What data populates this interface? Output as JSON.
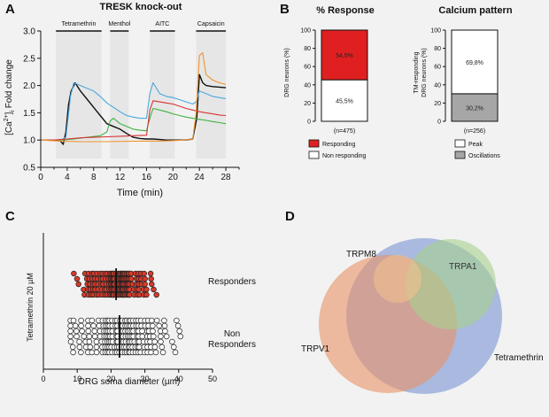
{
  "panels": {
    "A": {
      "letter": "A",
      "title": "TRESK knock-out"
    },
    "B": {
      "letter": "B"
    },
    "C": {
      "letter": "C"
    },
    "D": {
      "letter": "D"
    }
  },
  "chart_data": [
    {
      "id": "A",
      "type": "line",
      "title": "TRESK knock-out",
      "xlabel": "Time (min)",
      "ylabel": "[Ca2+]i Fold change",
      "ylabel_parts": {
        "pre": "[Ca",
        "sup": "2+",
        "mid": "]",
        "sub": "i",
        "post": " Fold change"
      },
      "xlim": [
        0,
        30
      ],
      "ylim": [
        0.5,
        3.0
      ],
      "xticks": [
        0,
        2,
        4,
        6,
        8,
        10,
        12,
        14,
        16,
        18,
        20,
        22,
        24,
        26,
        28,
        30
      ],
      "yticks": [
        0.5,
        1.0,
        1.5,
        2.0,
        2.5,
        3.0
      ],
      "ytick_labels": [
        "0.5",
        "1.0",
        "1.5",
        "2.0",
        "2.5",
        "3.0"
      ],
      "stimuli": [
        {
          "label": "Tetramethrin",
          "start": 2.3,
          "end": 9.2
        },
        {
          "label": "Menthol",
          "start": 10.5,
          "end": 13.3
        },
        {
          "label": "AITC",
          "start": 16.5,
          "end": 20.3
        },
        {
          "label": "Capsaicin",
          "start": 23.5,
          "end": 28.0
        }
      ],
      "series": [
        {
          "name": "black",
          "color": "#111111",
          "x": [
            0,
            2,
            3,
            3.4,
            3.8,
            4.2,
            4.6,
            5.2,
            6,
            7,
            8,
            9,
            10,
            11,
            12,
            13,
            14,
            15,
            16,
            17,
            18,
            19,
            20,
            21,
            22,
            23,
            23.6,
            24,
            24.5,
            25,
            26,
            27,
            28
          ],
          "y": [
            1.0,
            1.0,
            0.98,
            0.92,
            1.15,
            1.65,
            1.9,
            2.05,
            1.9,
            1.75,
            1.6,
            1.45,
            1.3,
            1.25,
            1.2,
            1.12,
            1.05,
            1.03,
            1.02,
            1.02,
            1.01,
            1.0,
            1.0,
            1.0,
            1.0,
            1.02,
            1.4,
            2.2,
            2.05,
            2.0,
            1.98,
            1.97,
            1.96
          ]
        },
        {
          "name": "blue",
          "color": "#4aa8de",
          "x": [
            0,
            3,
            3.8,
            4.5,
            5,
            6,
            7,
            8,
            9,
            10,
            11,
            12,
            13,
            14,
            15,
            16,
            16.5,
            17,
            17.5,
            18,
            19,
            20,
            21,
            22,
            23,
            23.5,
            24,
            25,
            26,
            27,
            28
          ],
          "y": [
            1.0,
            1.0,
            1.05,
            1.8,
            2.05,
            2.0,
            1.95,
            1.9,
            1.8,
            1.68,
            1.6,
            1.52,
            1.45,
            1.42,
            1.4,
            1.4,
            1.85,
            2.05,
            1.95,
            1.85,
            1.8,
            1.78,
            1.74,
            1.7,
            1.66,
            1.7,
            1.9,
            1.85,
            1.8,
            1.78,
            1.76
          ]
        },
        {
          "name": "green",
          "color": "#3fb33f",
          "x": [
            0,
            3,
            5,
            7,
            9,
            10,
            10.5,
            11,
            11.5,
            12,
            13,
            14,
            15,
            16,
            16.5,
            17,
            18,
            19,
            20,
            21,
            22,
            23,
            24,
            25,
            26,
            27,
            28
          ],
          "y": [
            1.0,
            1.0,
            1.02,
            1.05,
            1.08,
            1.15,
            1.35,
            1.4,
            1.35,
            1.3,
            1.25,
            1.2,
            1.18,
            1.17,
            1.4,
            1.58,
            1.55,
            1.52,
            1.48,
            1.45,
            1.42,
            1.4,
            1.38,
            1.36,
            1.34,
            1.32,
            1.3
          ]
        },
        {
          "name": "red",
          "color": "#d93232",
          "x": [
            0,
            2,
            4,
            6,
            8,
            10,
            12,
            14,
            16,
            16.5,
            17,
            18,
            19,
            20,
            21,
            22,
            23,
            24,
            25,
            26,
            27,
            28
          ],
          "y": [
            1.0,
            1.0,
            1.02,
            1.04,
            1.05,
            1.06,
            1.07,
            1.08,
            1.09,
            1.55,
            1.72,
            1.7,
            1.68,
            1.66,
            1.62,
            1.58,
            1.55,
            1.52,
            1.5,
            1.48,
            1.46,
            1.45
          ]
        },
        {
          "name": "orange",
          "color": "#f0952e",
          "x": [
            0,
            3,
            6,
            10,
            14,
            18,
            20,
            22,
            23,
            23.5,
            24,
            24.5,
            25,
            26,
            27,
            28
          ],
          "y": [
            1.0,
            0.98,
            0.97,
            0.97,
            0.98,
            0.98,
            0.99,
            1.0,
            1.02,
            1.5,
            2.55,
            2.6,
            2.2,
            2.1,
            2.05,
            2.02
          ]
        }
      ]
    },
    {
      "id": "B1",
      "type": "bar",
      "title": "% Response",
      "ylabel": "DRG neurons (%)",
      "ylim": [
        0,
        100
      ],
      "yticks": [
        0,
        20,
        40,
        60,
        80,
        100
      ],
      "ytick_labels": [
        "0",
        "20",
        "40",
        "60",
        "80",
        "100"
      ],
      "n_label": "(n=475)",
      "segments": [
        {
          "name": "Non responding",
          "value": 45.5,
          "label": "45,5%",
          "color": "#ffffff"
        },
        {
          "name": "Responding",
          "value": 54.5,
          "label": "54,5%",
          "color": "#e02020"
        }
      ],
      "legend": [
        "Responding",
        "Non responding"
      ]
    },
    {
      "id": "B2",
      "type": "bar",
      "title": "Calcium pattern",
      "ylabel": "TM-responding DRG neurons (%)",
      "ylabel_lines": [
        "TM-responding",
        "DRG neurons (%)"
      ],
      "ylim": [
        0,
        100
      ],
      "yticks": [
        0,
        20,
        40,
        60,
        80,
        100
      ],
      "ytick_labels": [
        "0",
        "20",
        "40",
        "60",
        "80",
        "100"
      ],
      "n_label": "(n=256)",
      "segments": [
        {
          "name": "Oscillations",
          "value": 30.2,
          "label": "30,2%",
          "color": "#a6a6a6"
        },
        {
          "name": "Peak",
          "value": 69.8,
          "label": "69,8%",
          "color": "#ffffff"
        }
      ],
      "legend": [
        "Peak",
        "Oscillations"
      ]
    },
    {
      "id": "C",
      "type": "scatter",
      "xlabel": "DRG soma diameter (µm)",
      "ylabel": "Tetramethrin 20 µM",
      "xlim": [
        0,
        50
      ],
      "xticks": [
        0,
        10,
        20,
        30,
        40,
        50
      ],
      "xtick_labels": [
        "0",
        "10",
        "20",
        "30",
        "40",
        "50"
      ],
      "groups": [
        {
          "name": "Responders",
          "label": "Responders",
          "color": "#d63a2a",
          "mean": 21.5,
          "sd": 4.5,
          "count": 160,
          "min": 9,
          "max": 34
        },
        {
          "name": "Non Responders",
          "label_lines": [
            "Non",
            "Responders"
          ],
          "color": "#ffffff",
          "mean": 22.5,
          "sd": 7.5,
          "count": 200,
          "min": 8,
          "max": 43
        }
      ]
    },
    {
      "id": "D",
      "type": "venn",
      "sets": [
        {
          "name": "TRPV1",
          "label": "TRPV1",
          "color": "#e8956a"
        },
        {
          "name": "Tetramethrin",
          "label": "Tetramethrin",
          "color": "#8aa1d8"
        },
        {
          "name": "TRPM8",
          "label": "TRPM8",
          "color": "#f2c090"
        },
        {
          "name": "TRPA1",
          "label": "TRPA1",
          "color": "#a7d08e"
        }
      ]
    }
  ]
}
